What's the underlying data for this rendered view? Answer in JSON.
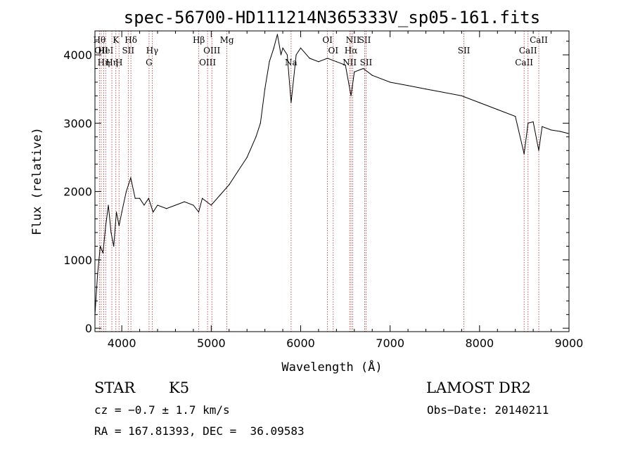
{
  "chart_data": {
    "type": "line",
    "title": "spec-56700-HD111214N365333V_sp05-161.fits",
    "xlabel": "Wavelength (Å)",
    "ylabel": "Flux (relative)",
    "xlim": [
      3700,
      9000
    ],
    "ylim": [
      -50,
      4350
    ],
    "x_ticks": [
      4000,
      5000,
      6000,
      7000,
      8000,
      9000
    ],
    "y_ticks": [
      0,
      1000,
      2000,
      3000,
      4000
    ],
    "grid": false,
    "series": [
      {
        "x": [
          3700,
          3730,
          3760,
          3790,
          3820,
          3850,
          3880,
          3910,
          3940,
          3970,
          4000,
          4050,
          4100,
          4150,
          4200,
          4250,
          4300,
          4350,
          4400,
          4500,
          4600,
          4700,
          4800,
          4860,
          4900,
          5000,
          5100,
          5200,
          5300,
          5400,
          5500,
          5550,
          5600,
          5650,
          5700,
          5740,
          5780,
          5800,
          5850,
          5893,
          5950,
          6000,
          6100,
          6200,
          6300,
          6400,
          6500,
          6563,
          6600,
          6700,
          6800,
          7000,
          7200,
          7400,
          7600,
          7800,
          8000,
          8200,
          8400,
          8498,
          8542,
          8600,
          8662,
          8700,
          8800,
          8900,
          8990
        ],
        "y": [
          200,
          800,
          1200,
          1100,
          1500,
          1800,
          1400,
          1200,
          1700,
          1500,
          1700,
          2000,
          2200,
          1900,
          1900,
          1800,
          1900,
          1700,
          1800,
          1750,
          1800,
          1850,
          1800,
          1700,
          1900,
          1800,
          1950,
          2100,
          2300,
          2500,
          2800,
          3000,
          3500,
          3900,
          4100,
          4300,
          4000,
          4100,
          4000,
          3300,
          4000,
          4100,
          3950,
          3900,
          3950,
          3900,
          3850,
          3400,
          3750,
          3800,
          3700,
          3600,
          3550,
          3500,
          3450,
          3400,
          3300,
          3200,
          3100,
          2550,
          3000,
          3020,
          2600,
          2950,
          2900,
          2880,
          2850
        ]
      }
    ],
    "lines": [
      {
        "wl": 3750,
        "label": "Hθ",
        "row": 1
      },
      {
        "wl": 3770,
        "label": "OII",
        "row": 2
      },
      {
        "wl": 3798,
        "label": "Hη",
        "row": 3
      },
      {
        "wl": 3820,
        "label": "HeI",
        "row": 2
      },
      {
        "wl": 3889,
        "label": "Hη",
        "row": 3
      },
      {
        "wl": 3934,
        "label": "K",
        "row": 1
      },
      {
        "wl": 3969,
        "label": "H",
        "row": 3
      },
      {
        "wl": 4072,
        "label": "SII",
        "row": 2
      },
      {
        "wl": 4102,
        "label": "Hδ",
        "row": 1
      },
      {
        "wl": 4305,
        "label": "G",
        "row": 3
      },
      {
        "wl": 4340,
        "label": "Hγ",
        "row": 2
      },
      {
        "wl": 4861,
        "label": "Hβ",
        "row": 1
      },
      {
        "wl": 4959,
        "label": "OIII",
        "row": 3
      },
      {
        "wl": 5007,
        "label": "OIII",
        "row": 2
      },
      {
        "wl": 5175,
        "label": "Mg",
        "row": 1
      },
      {
        "wl": 5893,
        "label": "Na",
        "row": 3
      },
      {
        "wl": 6300,
        "label": "OI",
        "row": 1
      },
      {
        "wl": 6364,
        "label": "OI",
        "row": 2
      },
      {
        "wl": 6548,
        "label": "NII",
        "row": 3
      },
      {
        "wl": 6563,
        "label": "Hα",
        "row": 2
      },
      {
        "wl": 6583,
        "label": "NII",
        "row": 1
      },
      {
        "wl": 6716,
        "label": "SII",
        "row": 1
      },
      {
        "wl": 6731,
        "label": "SII",
        "row": 3
      },
      {
        "wl": 7825,
        "label": "SII",
        "row": 2
      },
      {
        "wl": 8498,
        "label": "CaII",
        "row": 3
      },
      {
        "wl": 8542,
        "label": "CaII",
        "row": 2
      },
      {
        "wl": 8662,
        "label": "CaII",
        "row": 1
      }
    ]
  },
  "info": {
    "class": "STAR",
    "subclass": "K5",
    "survey": "LAMOST DR2",
    "cz": "cz = −0.7 ± 1.7 km/s",
    "obs_date": "Obs−Date: 20140211",
    "radec": "RA = 167.81393, DEC =  36.09583"
  },
  "colors": {
    "spectrum": "#000000",
    "line_markers": "#b03030",
    "background": "#ffffff"
  }
}
